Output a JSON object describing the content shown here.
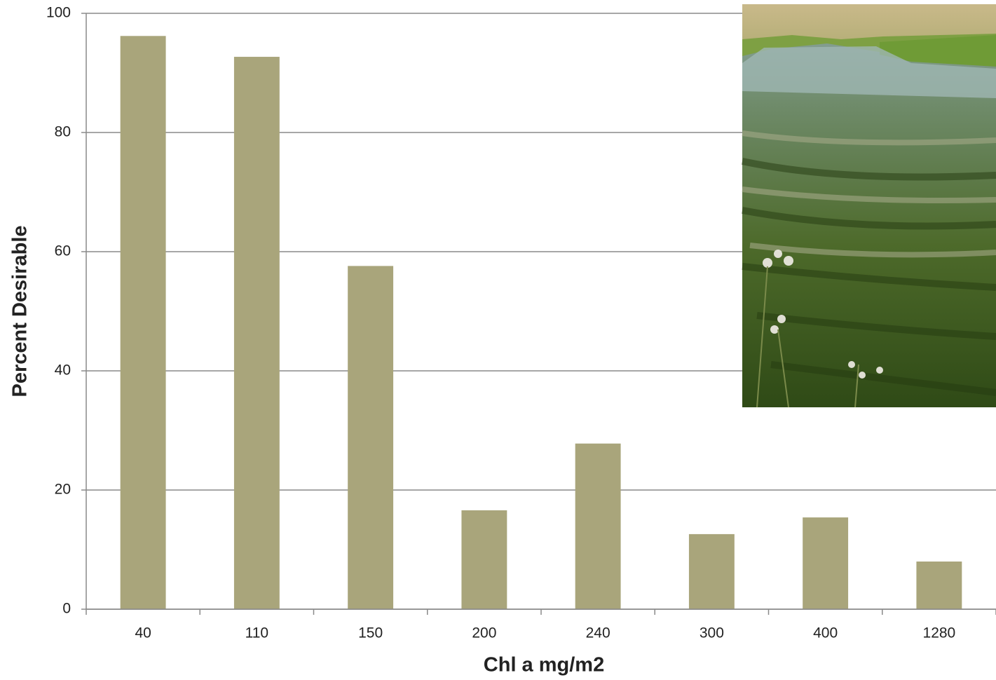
{
  "chart_data": {
    "type": "bar",
    "x_label": "Chl a mg/m2",
    "y_label": "Percent Desirable",
    "categories": [
      "40",
      "110",
      "150",
      "200",
      "240",
      "300",
      "400",
      "1280"
    ],
    "values": [
      96.2,
      92.7,
      57.6,
      16.6,
      27.8,
      12.6,
      15.4,
      8.0
    ],
    "color": "#a9a57b",
    "ylim": [
      0,
      100
    ],
    "yticks": [
      0,
      20,
      40,
      60,
      80,
      100
    ],
    "grid": true
  }
}
